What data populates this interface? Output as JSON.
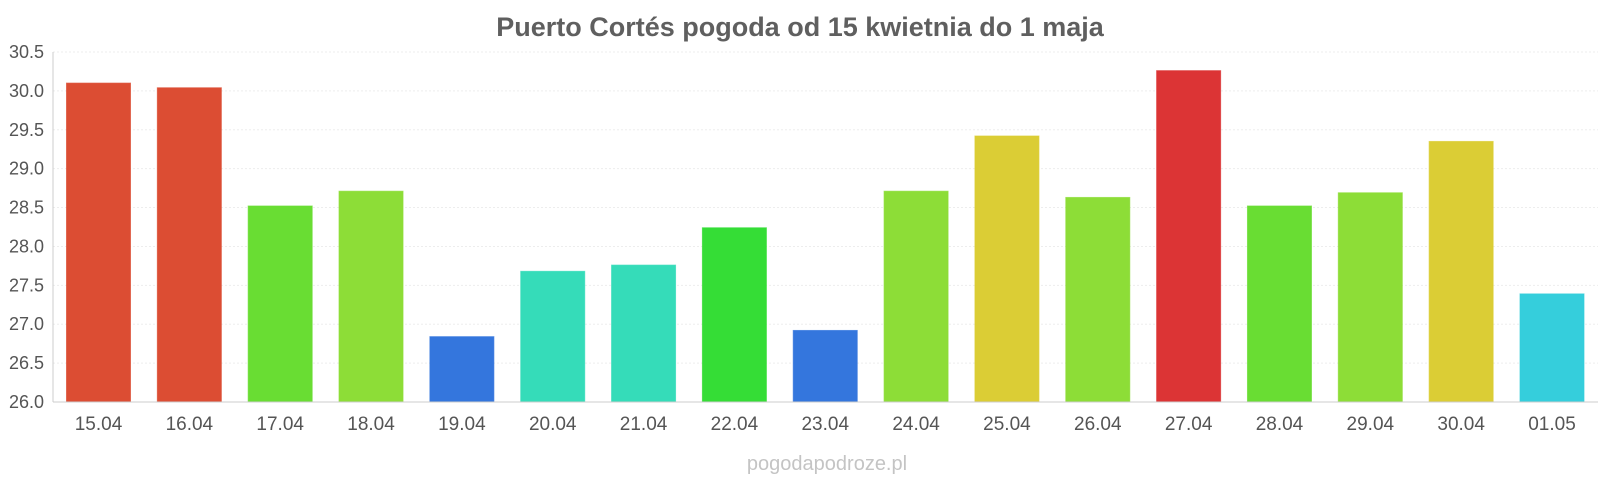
{
  "chart_data": {
    "type": "bar",
    "title": "Puerto Cortés pogoda od 15 kwietnia do 1 maja",
    "xlabel": "",
    "ylabel": "",
    "ylim": [
      26.0,
      30.5
    ],
    "yticks": [
      "26.0",
      "26.5",
      "27.0",
      "27.5",
      "28.0",
      "28.5",
      "29.0",
      "29.5",
      "30.0",
      "30.5"
    ],
    "grid": true,
    "categories": [
      "15.04",
      "16.04",
      "17.04",
      "18.04",
      "19.04",
      "20.04",
      "21.04",
      "22.04",
      "23.04",
      "24.04",
      "25.04",
      "26.04",
      "27.04",
      "28.04",
      "29.04",
      "30.04",
      "01.05"
    ],
    "values": [
      30.1,
      30.04,
      28.52,
      28.71,
      26.84,
      27.68,
      27.76,
      28.24,
      26.92,
      28.71,
      29.42,
      28.63,
      30.26,
      28.52,
      28.69,
      29.35,
      27.39
    ],
    "colors": [
      "#dc4d33",
      "#dc4d33",
      "#69dd33",
      "#8ddd37",
      "#3476dd",
      "#35dcb9",
      "#35dcb9",
      "#35dd36",
      "#3476dd",
      "#8ddd37",
      "#dbcd35",
      "#8ddd37",
      "#dc3435",
      "#69dd33",
      "#8ddd37",
      "#dbcd35",
      "#35cedc"
    ]
  },
  "watermark": "pogodapodroze.pl"
}
